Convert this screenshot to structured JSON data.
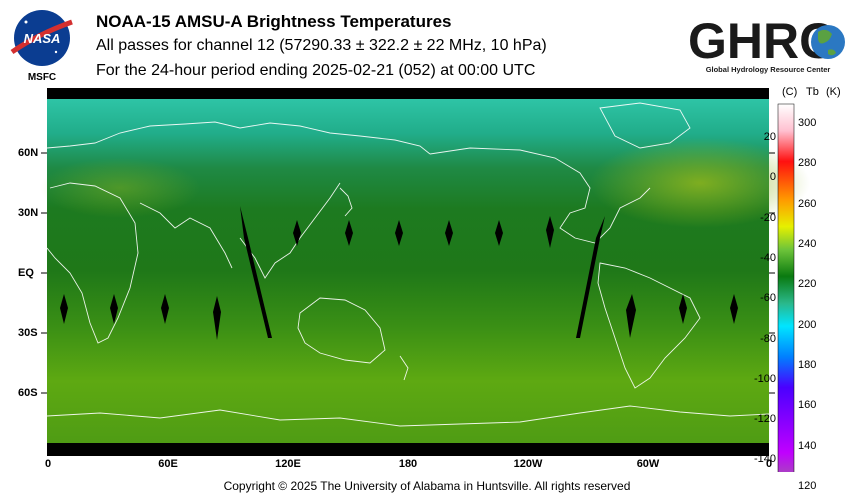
{
  "header": {
    "title": "NOAA-15 AMSU-A Brightness Temperatures",
    "subtitle_line1": "All passes for channel 12 (57290.33 ± 322.2 ± 22 MHz, 10 hPa)",
    "subtitle_line2": "For the 24-hour period ending 2025-02-21 (052) at 00:00 UTC"
  },
  "logos": {
    "nasa": {
      "text": "NASA",
      "caption": "MSFC"
    },
    "ghrc": {
      "text": "GHRC",
      "caption": "Global Hydrology Resource Center"
    }
  },
  "map": {
    "lat_labels": [
      "60N",
      "30N",
      "EQ",
      "30S",
      "60S"
    ],
    "lon_labels": [
      "0",
      "60E",
      "120E",
      "180",
      "120W",
      "60W",
      "0"
    ],
    "colors": {
      "land_outline": "#ffffff",
      "missing_data": "#000000"
    }
  },
  "colorbar": {
    "header_c": "(C)",
    "header_tb": "Tb",
    "header_k": "(K)",
    "celsius_ticks": [
      "20",
      "0",
      "-20",
      "-40",
      "-60",
      "-80",
      "-100",
      "-120",
      "-140"
    ],
    "kelvin_ticks": [
      "300",
      "280",
      "260",
      "240",
      "220",
      "200",
      "180",
      "160",
      "140",
      "120"
    ],
    "kelvin_range": [
      120,
      310
    ]
  },
  "footer": {
    "copyright": "Copyright © 2025 The University of Alabama in Huntsville.  All rights reserved"
  }
}
